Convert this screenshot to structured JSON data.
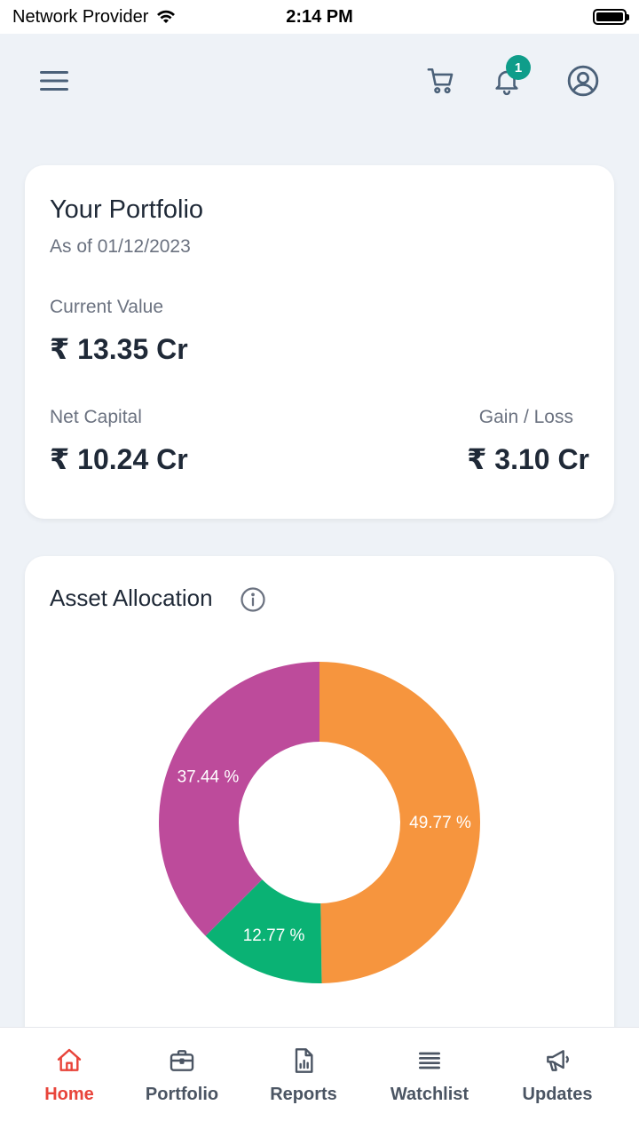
{
  "status_bar": {
    "carrier": "Network Provider",
    "time": "2:14 PM"
  },
  "header": {
    "notification_count": "1"
  },
  "portfolio": {
    "title": "Your Portfolio",
    "as_of": "As of 01/12/2023",
    "current_value_label": "Current Value",
    "current_value": "₹ 13.35 Cr",
    "net_capital_label": "Net Capital",
    "net_capital": "₹ 10.24 Cr",
    "gain_loss_label": "Gain / Loss",
    "gain_loss": "₹ 3.10 Cr"
  },
  "allocation": {
    "title": "Asset Allocation"
  },
  "chart_data": {
    "type": "pie",
    "values": [
      49.77,
      12.77,
      37.44
    ],
    "labels": [
      "49.77 %",
      "12.77 %",
      "37.44 %"
    ],
    "colors": [
      "#f6953e",
      "#0ab274",
      "#bd4b9b"
    ]
  },
  "bottom_nav": {
    "items": [
      {
        "label": "Home",
        "icon": "home-icon",
        "active": true
      },
      {
        "label": "Portfolio",
        "icon": "briefcase-icon",
        "active": false
      },
      {
        "label": "Reports",
        "icon": "report-icon",
        "active": false
      },
      {
        "label": "Watchlist",
        "icon": "list-icon",
        "active": false
      },
      {
        "label": "Updates",
        "icon": "megaphone-icon",
        "active": false
      }
    ]
  },
  "colors": {
    "accent": "#e8443a",
    "badge": "#0f9d8a",
    "icon": "#4b6179"
  }
}
